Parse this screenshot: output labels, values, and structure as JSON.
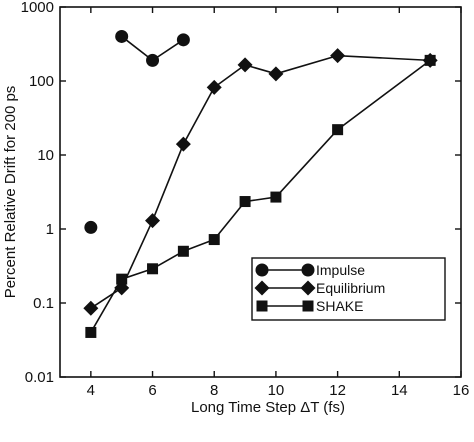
{
  "chart_data": {
    "type": "line",
    "title": "",
    "xlabel": "Long Time Step ΔT (fs)",
    "ylabel": "Percent Relative Drift for 200 ps",
    "xlim": [
      3,
      16
    ],
    "ylim": [
      0.01,
      1000
    ],
    "yscale": "log",
    "xticks": [
      "4",
      "6",
      "8",
      "10",
      "12",
      "14",
      "16"
    ],
    "yticks": [
      "0.01",
      "0.1",
      "1",
      "10",
      "100",
      "1000"
    ],
    "xtick_values": [
      4,
      6,
      8,
      10,
      12,
      14,
      16
    ],
    "ytick_values": [
      0.01,
      0.1,
      1,
      10,
      100,
      1000
    ],
    "legend_position": "lower-right",
    "series": [
      {
        "name": "Impulse",
        "marker": "circle",
        "points": [
          {
            "x": 4,
            "y": 1.05
          },
          {
            "x": 5,
            "y": 400
          },
          {
            "x": 6,
            "y": 190
          },
          {
            "x": 7,
            "y": 360
          }
        ],
        "segments": [
          [
            1,
            2
          ],
          [
            2,
            3
          ]
        ]
      },
      {
        "name": "Equilibrium",
        "marker": "diamond",
        "points": [
          {
            "x": 4,
            "y": 0.085
          },
          {
            "x": 5,
            "y": 0.16
          },
          {
            "x": 6,
            "y": 1.3
          },
          {
            "x": 7,
            "y": 14
          },
          {
            "x": 8,
            "y": 82
          },
          {
            "x": 9,
            "y": 165
          },
          {
            "x": 10,
            "y": 125
          },
          {
            "x": 12,
            "y": 220
          },
          {
            "x": 15,
            "y": 190
          }
        ],
        "segments": [
          [
            0,
            1
          ],
          [
            1,
            2
          ],
          [
            2,
            3
          ],
          [
            3,
            4
          ],
          [
            4,
            5
          ],
          [
            5,
            6
          ],
          [
            6,
            7
          ],
          [
            7,
            8
          ]
        ]
      },
      {
        "name": "SHAKE",
        "marker": "square",
        "points": [
          {
            "x": 4,
            "y": 0.04
          },
          {
            "x": 5,
            "y": 0.21
          },
          {
            "x": 6,
            "y": 0.29
          },
          {
            "x": 7,
            "y": 0.5
          },
          {
            "x": 8,
            "y": 0.72
          },
          {
            "x": 9,
            "y": 2.35
          },
          {
            "x": 10,
            "y": 2.7
          },
          {
            "x": 12,
            "y": 22
          },
          {
            "x": 15,
            "y": 190
          }
        ],
        "segments": [
          [
            0,
            1
          ],
          [
            1,
            2
          ],
          [
            2,
            3
          ],
          [
            3,
            4
          ],
          [
            4,
            5
          ],
          [
            5,
            6
          ],
          [
            6,
            7
          ],
          [
            7,
            8
          ]
        ]
      }
    ]
  }
}
